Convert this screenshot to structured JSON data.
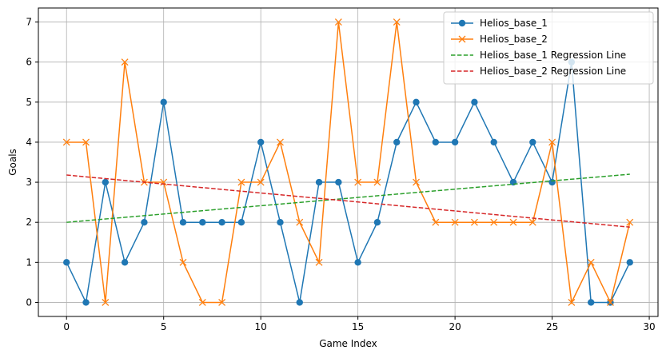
{
  "chart_data": {
    "type": "line",
    "title": "",
    "xlabel": "Game Index",
    "ylabel": "Goals",
    "xlim": [
      -1.45,
      30.45
    ],
    "ylim": [
      -0.35,
      7.35
    ],
    "xticks": [
      0,
      5,
      10,
      15,
      20,
      25,
      30
    ],
    "yticks": [
      0,
      1,
      2,
      3,
      4,
      5,
      6,
      7
    ],
    "grid": true,
    "legend_position": "top-right",
    "x": [
      0,
      1,
      2,
      3,
      4,
      5,
      6,
      7,
      8,
      9,
      10,
      11,
      12,
      13,
      14,
      15,
      16,
      17,
      18,
      19,
      20,
      21,
      22,
      23,
      24,
      25,
      26,
      27,
      28,
      29
    ],
    "series": [
      {
        "name": "Helios_base_1",
        "color": "#1f77b4",
        "marker": "circle",
        "style": "solid",
        "values": [
          1,
          0,
          3,
          1,
          2,
          5,
          2,
          2,
          2,
          2,
          4,
          2,
          0,
          3,
          3,
          1,
          2,
          4,
          5,
          4,
          4,
          5,
          4,
          3,
          4,
          3,
          6,
          0,
          0,
          1
        ]
      },
      {
        "name": "Helios_base_2",
        "color": "#ff7f0e",
        "marker": "x",
        "style": "solid",
        "values": [
          4,
          4,
          0,
          6,
          3,
          3,
          1,
          0,
          0,
          3,
          3,
          4,
          2,
          1,
          7,
          3,
          3,
          7,
          3,
          2,
          2,
          2,
          2,
          2,
          2,
          4,
          0,
          1,
          0,
          2
        ]
      },
      {
        "name": "Helios_base_1 Regression Line",
        "color": "#2ca02c",
        "style": "dashed",
        "x": [
          0,
          29
        ],
        "values": [
          2.0,
          3.2
        ]
      },
      {
        "name": "Helios_base_2 Regression Line",
        "color": "#d62728",
        "style": "dashed",
        "x": [
          0,
          29
        ],
        "values": [
          3.18,
          1.88
        ]
      }
    ]
  }
}
